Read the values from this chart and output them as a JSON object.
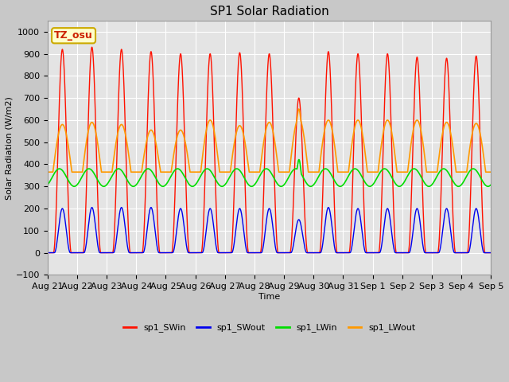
{
  "title": "SP1 Solar Radiation",
  "xlabel": "Time",
  "ylabel": "Solar Radiation (W/m2)",
  "ylim": [
    -100,
    1050
  ],
  "yticks": [
    -100,
    0,
    100,
    200,
    300,
    400,
    500,
    600,
    700,
    800,
    900,
    1000
  ],
  "annotation_text": "TZ_osu",
  "annotation_color": "#cc2200",
  "annotation_bg": "#ffffcc",
  "annotation_border": "#ccaa00",
  "colors": {
    "sp1_SWin": "#ff1100",
    "sp1_SWout": "#0000ee",
    "sp1_LWin": "#00dd00",
    "sp1_LWout": "#ff9900"
  },
  "n_days": 15,
  "x_tick_labels": [
    "Aug 21",
    "Aug 22",
    "Aug 23",
    "Aug 24",
    "Aug 25",
    "Aug 26",
    "Aug 27",
    "Aug 28",
    "Aug 29",
    "Aug 30",
    "Aug 31",
    "Sep 1",
    "Sep 2",
    "Sep 3",
    "Sep 4",
    "Sep 5"
  ],
  "sw_peaks": [
    920,
    930,
    920,
    910,
    900,
    900,
    905,
    900,
    700,
    910,
    900,
    900,
    885,
    880,
    890
  ],
  "sw_out_peaks": [
    200,
    205,
    205,
    205,
    200,
    200,
    200,
    200,
    150,
    205,
    200,
    200,
    200,
    200,
    200
  ],
  "lw_out_peaks": [
    580,
    590,
    580,
    555,
    555,
    600,
    575,
    590,
    610,
    600,
    600,
    600,
    600,
    590,
    585
  ],
  "lw_out_night": 365,
  "lw_in_base": 340,
  "lw_in_amp": 40
}
